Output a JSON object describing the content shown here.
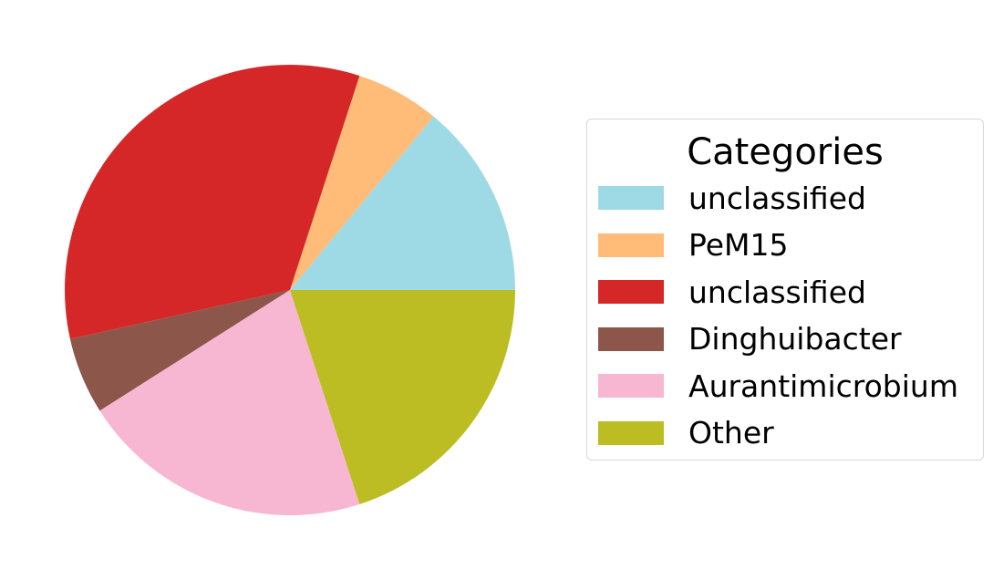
{
  "chart_data": {
    "type": "pie",
    "legend": {
      "title": "Categories",
      "placement": "right"
    },
    "start_angle_deg": 0,
    "direction": "counterclockwise",
    "slices": [
      {
        "label": "unclassified",
        "value": 14.0,
        "color": "#9edae5"
      },
      {
        "label": "PeM15",
        "value": 6.0,
        "color": "#ffbb78"
      },
      {
        "label": "unclassified",
        "value": 33.5,
        "color": "#d62728"
      },
      {
        "label": "Dinghuibacter",
        "value": 5.5,
        "color": "#8c564b"
      },
      {
        "label": "Aurantimicrobium",
        "value": 21.0,
        "color": "#f7b6d2"
      },
      {
        "label": "Other",
        "value": 20.0,
        "color": "#bcbd22"
      }
    ]
  }
}
